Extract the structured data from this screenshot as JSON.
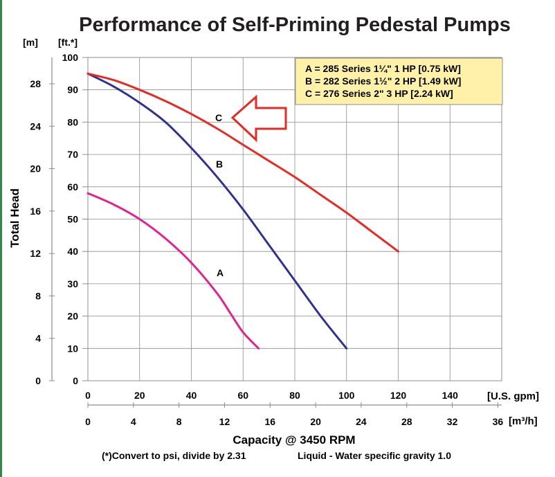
{
  "chart_data": {
    "type": "line",
    "title": "Performance of Self-Priming Pedestal Pumps",
    "ylabel": "Total Head",
    "y_unit_left": "[m]",
    "y_unit_right": "[ft.*]",
    "xlabel": "Capacity @ 3450 RPM",
    "x_unit_primary": "[U.S. gpm]",
    "x_unit_secondary": "[m³/h]",
    "footnote_left": "(*)Convert to psi, divide by 2.31",
    "footnote_right": "Liquid - Water specific gravity 1.0",
    "xlim": [
      0,
      160
    ],
    "ylim": [
      0,
      100
    ],
    "grid": true,
    "legend_position": "top-right",
    "legend": [
      "A = 285 Series 1¼\" 1 HP [0.75 kW]",
      "B = 282 Series 1½\" 2 HP [1.49 kW]",
      "C = 276 Series 2\" 3 HP [2.24 kW]"
    ],
    "x_ticks": [
      "0",
      "20",
      "40",
      "60",
      "80",
      "100",
      "120",
      "140"
    ],
    "x_ticks_m3h": [
      "0",
      "4",
      "8",
      "12",
      "16",
      "20",
      "24",
      "28",
      "32",
      "36"
    ],
    "y_ticks_ft": [
      "0",
      "10",
      "20",
      "30",
      "40",
      "50",
      "60",
      "70",
      "80",
      "90",
      "100"
    ],
    "y_ticks_m": [
      "0",
      "4",
      "8",
      "12",
      "16",
      "20",
      "24",
      "28"
    ],
    "series": [
      {
        "name": "A",
        "color": "#e0238f",
        "x": [
          0,
          10,
          20,
          30,
          40,
          50,
          55,
          60,
          66
        ],
        "y": [
          58,
          54.5,
          50,
          44,
          36.5,
          27,
          21,
          15,
          10
        ]
      },
      {
        "name": "B",
        "color": "#2e3191",
        "x": [
          0,
          10,
          20,
          30,
          40,
          50,
          60,
          70,
          80,
          90,
          100
        ],
        "y": [
          95,
          91,
          86,
          80,
          72,
          63,
          53,
          42,
          31,
          20,
          10
        ]
      },
      {
        "name": "C",
        "color": "#e52b24",
        "x": [
          0,
          10,
          20,
          30,
          40,
          50,
          60,
          70,
          80,
          90,
          100,
          110,
          120
        ],
        "y": [
          95,
          93,
          90,
          86.5,
          82.5,
          78,
          73,
          68,
          63,
          57.5,
          52,
          46,
          40
        ]
      }
    ],
    "annotation": {
      "type": "arrow",
      "color": "#e52b24",
      "points_to": "C"
    }
  }
}
